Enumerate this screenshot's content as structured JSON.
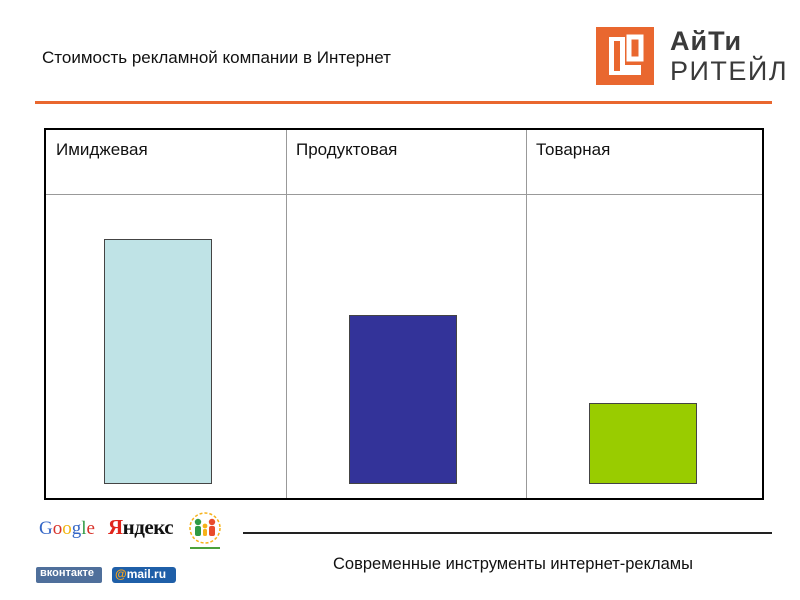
{
  "slide": {
    "title": "Стоимость рекламной компании в Интернет",
    "footer_caption": "Современные инструменты интернет-рекламы"
  },
  "brand_logo": {
    "line1": "АйТи",
    "line2": "РИТЕЙЛ",
    "color": "#e9672f"
  },
  "chart_data": {
    "type": "bar",
    "categories": [
      "Имиджевая",
      "Продуктовая",
      "Товарная"
    ],
    "values": [
      245,
      169,
      81
    ],
    "colors": [
      "#bfe3e6",
      "#333399",
      "#99cc00"
    ],
    "title": "",
    "xlabel": "",
    "ylabel": "",
    "ylim": [
      0,
      290
    ],
    "grid": false,
    "legend": "none"
  },
  "partner_logos": {
    "google": "Google",
    "yandex_first": "Я",
    "yandex_rest": "ндекс",
    "odnoklassniki": "odnoklassniki-logo",
    "vkontakte": "вконтакте",
    "mailru_at": "@",
    "mailru_rest": "mail.ru"
  }
}
